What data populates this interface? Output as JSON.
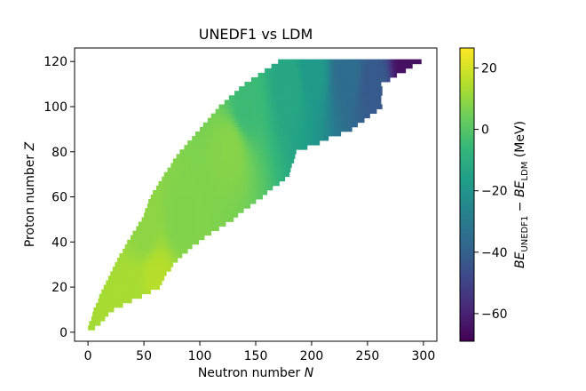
{
  "chart_data": {
    "type": "heatmap",
    "title": "UNEDF1 vs LDM",
    "xlabel": "Neutron number N",
    "ylabel": "Proton number Z",
    "colorbar_label": "BE_UNEDF1 − BE_LDM (MeV)",
    "xlim": [
      -12,
      312
    ],
    "ylim": [
      -4,
      126
    ],
    "xticks": [
      0,
      50,
      100,
      150,
      200,
      250,
      300
    ],
    "yticks": [
      0,
      20,
      40,
      60,
      80,
      100,
      120
    ],
    "colorbar": {
      "colormap": "viridis",
      "range": [
        -69,
        26.5
      ],
      "ticks": [
        20,
        0,
        -20,
        -40,
        -60
      ]
    },
    "grid": false,
    "boundary": {
      "Z": [
        2,
        10,
        20,
        30,
        40,
        50,
        60,
        70,
        80,
        90,
        100,
        110,
        120
      ],
      "N_min": [
        0,
        5,
        14,
        24,
        35,
        48,
        56,
        68,
        82,
        100,
        117,
        140,
        170
      ],
      "N_max": [
        6,
        22,
        63,
        75,
        98,
        129,
        155,
        180,
        186,
        235,
        262,
        262,
        297
      ]
    },
    "points": [
      {
        "N": 40,
        "Z": 16,
        "value": 14
      },
      {
        "N": 60,
        "Z": 24,
        "value": 16
      },
      {
        "N": 50,
        "Z": 45,
        "value": 10
      },
      {
        "N": 82,
        "Z": 50,
        "value": 8
      },
      {
        "N": 126,
        "Z": 82,
        "value": 9
      },
      {
        "N": 140,
        "Z": 100,
        "value": -4
      },
      {
        "N": 180,
        "Z": 110,
        "value": -12
      },
      {
        "N": 200,
        "Z": 115,
        "value": -18
      },
      {
        "N": 230,
        "Z": 115,
        "value": -35
      },
      {
        "N": 255,
        "Z": 110,
        "value": -42
      },
      {
        "N": 285,
        "Z": 118,
        "value": -65
      }
    ]
  }
}
